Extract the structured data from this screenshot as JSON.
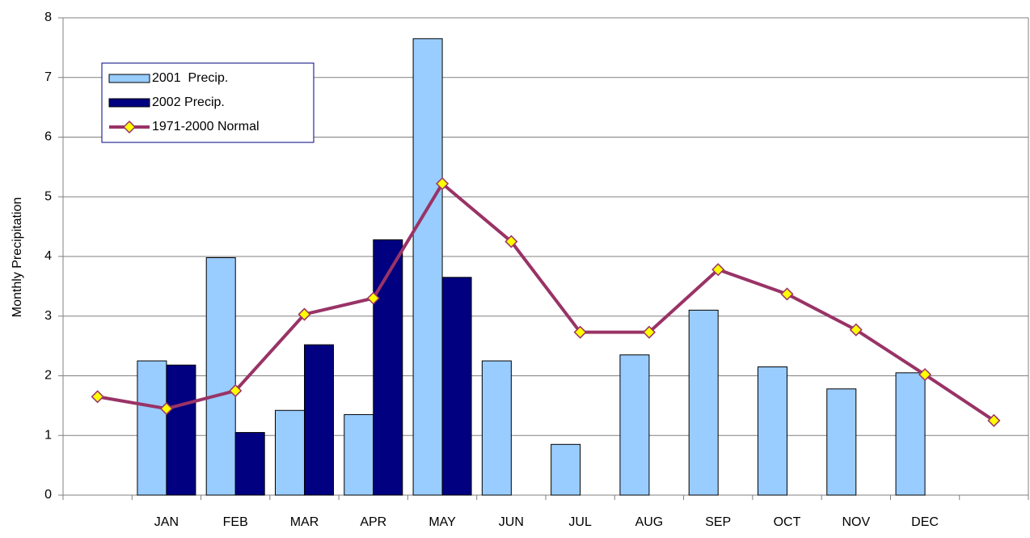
{
  "chart_data": {
    "type": "bar",
    "y_label": "Monthly Precipitation",
    "categories": [
      null,
      "JAN",
      "FEB",
      "MAR",
      "APR",
      "MAY",
      "JUN",
      "JUL",
      "AUG",
      "SEP",
      "OCT",
      "NOV",
      "DEC",
      null
    ],
    "series": [
      {
        "name": "2001  Precip.",
        "type": "bar",
        "color": "#99ccff",
        "values": [
          null,
          2.25,
          3.98,
          1.42,
          1.35,
          7.65,
          2.25,
          0.85,
          2.35,
          3.1,
          2.15,
          1.78,
          2.05,
          null
        ]
      },
      {
        "name": "2002 Precip.",
        "type": "bar",
        "color": "#000080",
        "values": [
          null,
          2.18,
          1.05,
          2.52,
          4.28,
          3.65,
          null,
          null,
          null,
          null,
          null,
          null,
          null,
          null
        ]
      },
      {
        "name": "1971-2000 Normal",
        "type": "line",
        "color": "#993366",
        "marker_color": "#ffff00",
        "values": [
          1.65,
          1.45,
          1.75,
          3.03,
          3.3,
          5.22,
          4.25,
          2.73,
          2.73,
          3.78,
          3.37,
          2.77,
          2.02,
          1.25
        ]
      }
    ],
    "ylim": [
      0,
      8
    ],
    "yticks": [
      0,
      1,
      2,
      3,
      4,
      5,
      6,
      7,
      8
    ],
    "grid": true,
    "legend": "upper left"
  }
}
